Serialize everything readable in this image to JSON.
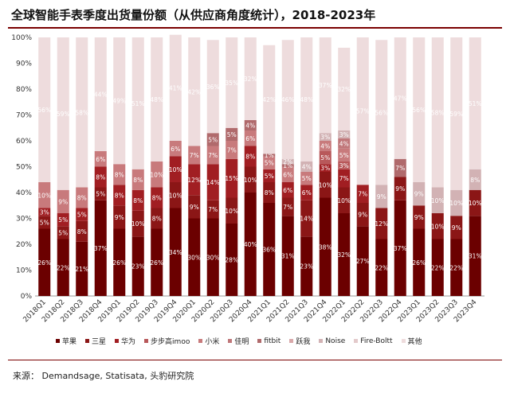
{
  "title": "全球智能手表季度出货量份额（从供应商角度统计），2018-2023年",
  "source": "来源： Demandsage,  Statisata, 头豹研究院",
  "colors": [
    "#6b0000",
    "#8b1616",
    "#a11e22",
    "#b8585a",
    "#c87a7c",
    "#c0777a",
    "#b06a6c",
    "#d9a8aa",
    "#d2b2b4",
    "#e3cacb",
    "#eedcdd"
  ],
  "chart_data": {
    "type": "bar",
    "stacked": true,
    "ylim": [
      0,
      100
    ],
    "yticks": [
      "0%",
      "10%",
      "20%",
      "30%",
      "40%",
      "50%",
      "60%",
      "70%",
      "80%",
      "90%",
      "100%"
    ],
    "categories": [
      "2018Q1",
      "2018Q2",
      "2018Q3",
      "2018Q4",
      "2019Q1",
      "2019Q2",
      "2019Q3",
      "2019Q4",
      "2020Q1",
      "2020Q2",
      "2020Q3",
      "2020Q4",
      "2021Q1",
      "2021Q2",
      "2021Q3",
      "2021Q4",
      "2022Q1",
      "2022Q2",
      "2022Q3",
      "2022Q4",
      "2023Q1",
      "2023Q2",
      "2023Q3",
      "2023Q4"
    ],
    "series": [
      {
        "name": "苹果",
        "values": [
          26,
          22,
          21,
          37,
          26,
          23,
          26,
          34,
          30,
          30,
          28,
          40,
          36,
          31,
          23,
          38,
          32,
          27,
          22,
          37,
          26,
          22,
          22,
          31
        ]
      },
      {
        "name": "三星",
        "values": [
          5,
          5,
          8,
          5,
          9,
          10,
          8,
          10,
          9,
          7,
          10,
          10,
          8,
          7,
          14,
          10,
          10,
          9,
          12,
          9,
          9,
          10,
          9,
          10
        ]
      },
      {
        "name": "华为",
        "values": [
          3,
          5,
          5,
          8,
          8,
          8,
          8,
          10,
          12,
          14,
          15,
          8,
          5,
          6,
          6,
          3,
          7,
          7,
          0,
          0,
          0,
          0,
          0,
          0
        ]
      },
      {
        "name": "步步高imoo",
        "values": [
          0,
          0,
          0,
          0,
          0,
          0,
          0,
          0,
          0,
          0,
          0,
          0,
          0,
          0,
          0,
          5,
          3,
          0,
          0,
          0,
          0,
          0,
          0,
          0
        ]
      },
      {
        "name": "小米",
        "values": [
          10,
          9,
          8,
          6,
          8,
          8,
          10,
          6,
          7,
          7,
          7,
          6,
          5,
          6,
          5,
          4,
          5,
          0,
          0,
          0,
          0,
          0,
          0,
          0
        ]
      },
      {
        "name": "佳明",
        "values": [
          0,
          0,
          0,
          0,
          0,
          0,
          0,
          0,
          0,
          0,
          0,
          0,
          0,
          0,
          0,
          0,
          4,
          0,
          0,
          0,
          0,
          0,
          0,
          0
        ]
      },
      {
        "name": "fitbit",
        "values": [
          0,
          0,
          0,
          0,
          0,
          0,
          0,
          0,
          0,
          5,
          5,
          4,
          1,
          1,
          0,
          0,
          0,
          0,
          0,
          7,
          0,
          0,
          0,
          0
        ]
      },
      {
        "name": "跃我",
        "values": [
          0,
          0,
          0,
          0,
          0,
          0,
          0,
          0,
          0,
          0,
          0,
          0,
          0,
          0,
          0,
          0,
          0,
          0,
          0,
          0,
          0,
          0,
          0,
          0
        ]
      },
      {
        "name": "Noise",
        "values": [
          0,
          0,
          0,
          0,
          0,
          0,
          0,
          0,
          0,
          0,
          0,
          0,
          0,
          2,
          4,
          3,
          3,
          0,
          9,
          0,
          9,
          10,
          10,
          8
        ]
      },
      {
        "name": "Fire-Boltt",
        "values": [
          0,
          0,
          0,
          0,
          0,
          0,
          0,
          0,
          0,
          0,
          0,
          0,
          0,
          0,
          0,
          0,
          0,
          0,
          0,
          0,
          0,
          0,
          0,
          0
        ]
      },
      {
        "name": "其他",
        "values": [
          56,
          59,
          58,
          44,
          49,
          51,
          48,
          41,
          42,
          36,
          35,
          32,
          42,
          46,
          48,
          37,
          32,
          57,
          56,
          47,
          56,
          58,
          59,
          51
        ]
      }
    ]
  }
}
